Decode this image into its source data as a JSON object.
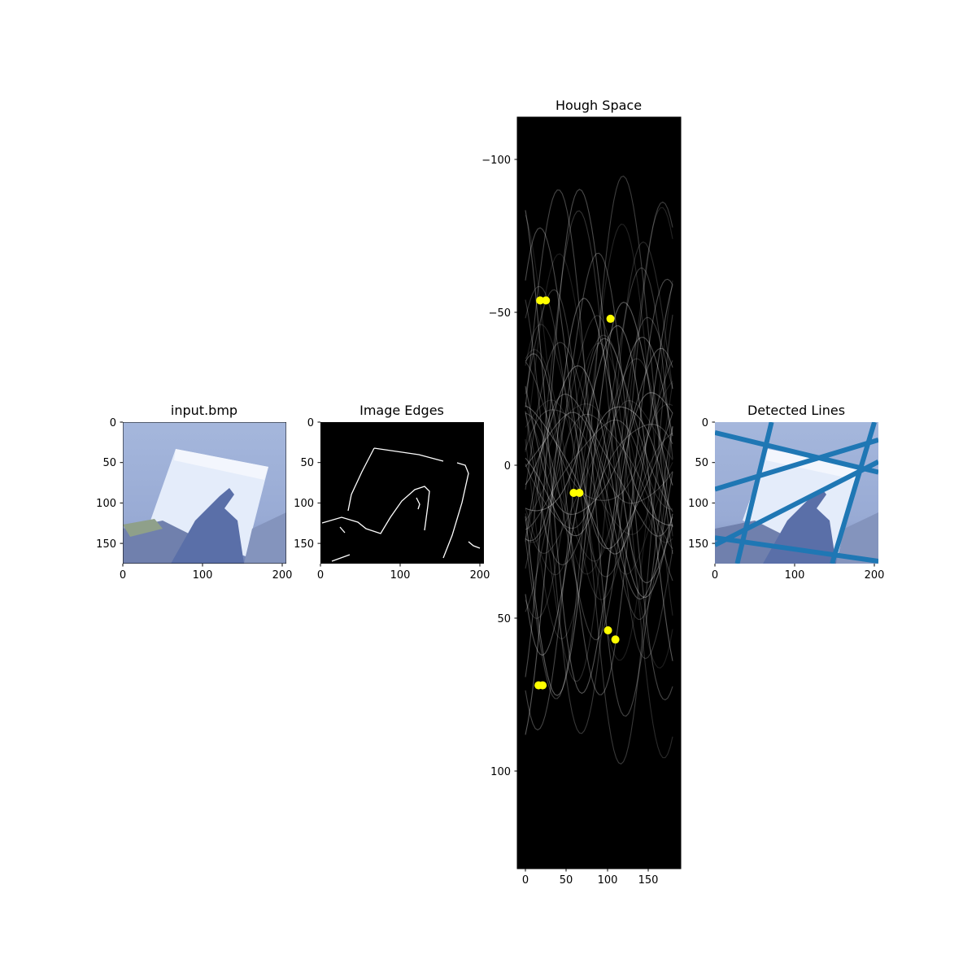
{
  "chart_data": [
    {
      "type": "image",
      "title": "input.bmp",
      "xlim": [
        0,
        205
      ],
      "ylim": [
        175,
        0
      ],
      "xticks": [
        "0",
        "100",
        "200"
      ],
      "yticks": [
        "0",
        "50",
        "100",
        "150"
      ]
    },
    {
      "type": "image",
      "title": "Image Edges",
      "xlim": [
        0,
        205
      ],
      "ylim": [
        175,
        0
      ],
      "xticks": [
        "0",
        "100",
        "200"
      ],
      "yticks": [
        "0",
        "50",
        "100",
        "150"
      ]
    },
    {
      "type": "heatmap",
      "title": "Hough Space",
      "xlim": [
        -10,
        190
      ],
      "ylim": [
        132,
        -114
      ],
      "xticks": [
        "0",
        "50",
        "100",
        "150"
      ],
      "yticks": [
        "−100",
        "−50",
        "0",
        "50",
        "100"
      ],
      "peaks": [
        {
          "x": 18,
          "y": -54
        },
        {
          "x": 25,
          "y": -54
        },
        {
          "x": 104,
          "y": -48
        },
        {
          "x": 59,
          "y": 9
        },
        {
          "x": 66,
          "y": 9
        },
        {
          "x": 101,
          "y": 54
        },
        {
          "x": 110,
          "y": 57
        },
        {
          "x": 16,
          "y": 72
        },
        {
          "x": 21,
          "y": 72
        }
      ]
    },
    {
      "type": "image",
      "title": "Detected Lines",
      "xlim": [
        0,
        205
      ],
      "ylim": [
        175,
        0
      ],
      "xticks": [
        "0",
        "100",
        "200"
      ],
      "yticks": [
        "0",
        "50",
        "100",
        "150"
      ],
      "lines": [
        {
          "x1": 0,
          "y1": 83,
          "x2": 205,
          "y2": 22
        },
        {
          "x1": 0,
          "y1": 13,
          "x2": 205,
          "y2": 62
        },
        {
          "x1": 0,
          "y1": 152,
          "x2": 205,
          "y2": 49
        },
        {
          "x1": 0,
          "y1": 143,
          "x2": 205,
          "y2": 172
        },
        {
          "x1": 28,
          "y1": 175,
          "x2": 71,
          "y2": 0
        },
        {
          "x1": 147,
          "y1": 175,
          "x2": 200,
          "y2": 0
        }
      ]
    }
  ],
  "colors": {
    "line": "#1f77b4",
    "peak": "#ffff00",
    "photo_sky": "#9aaed6",
    "paper": "#e4ecfa",
    "hand": "#5a6fa8"
  }
}
